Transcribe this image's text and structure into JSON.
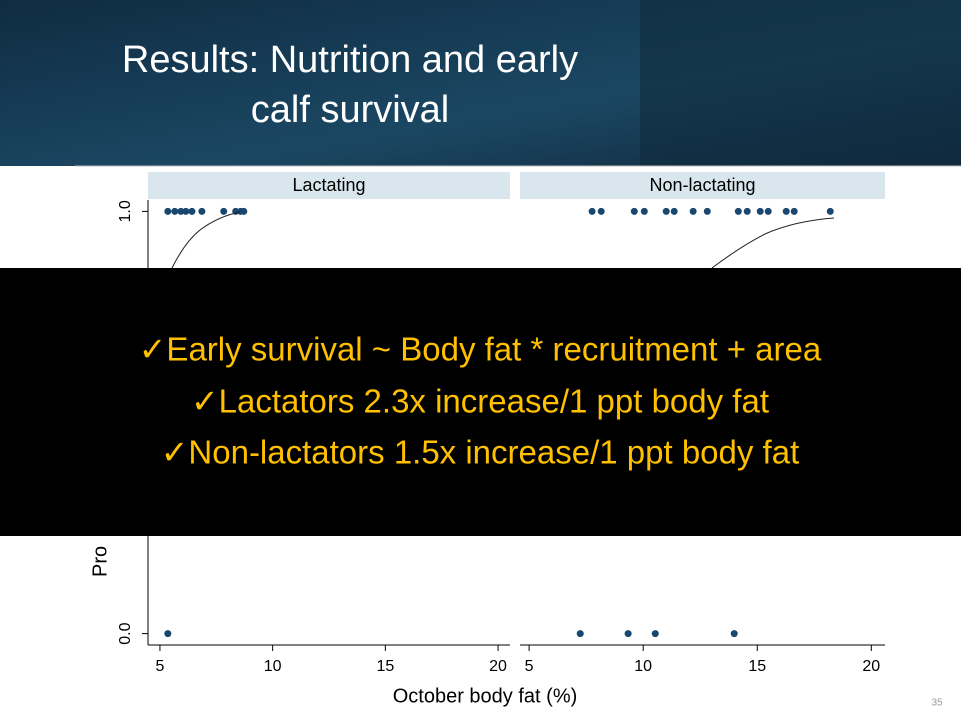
{
  "title_lines": [
    "Results: Nutrition and early",
    "calf survival"
  ],
  "chart_data": [
    {
      "type": "scatter",
      "title": "Lactating",
      "color": "#1a476f",
      "x": [
        5.35,
        5.66,
        5.93,
        6.15,
        6.42,
        6.86,
        7.83,
        8.36,
        8.58,
        8.72,
        5.35
      ],
      "y": [
        1,
        1,
        1,
        1,
        1,
        1,
        1,
        1,
        1,
        1,
        0
      ],
      "xlim": [
        4.47,
        20.53
      ],
      "ylim": [
        -0.027,
        1.027
      ],
      "xticks": [
        5,
        10,
        15,
        20
      ],
      "yticks": [
        {
          "value": 0,
          "label": "0.0"
        },
        {
          "value": 1,
          "label": "1.0"
        }
      ],
      "ylabel": "Pro"
    },
    {
      "type": "scatter",
      "title": "Non-lactating",
      "color": "#1a476f",
      "x": [
        7.76,
        8.16,
        9.61,
        10.05,
        11.01,
        11.36,
        12.19,
        12.81,
        14.17,
        14.56,
        15.13,
        15.48,
        16.27,
        16.62,
        18.2,
        7.24,
        9.34,
        10.53,
        13.99
      ],
      "y": [
        1,
        1,
        1,
        1,
        1,
        1,
        1,
        1,
        1,
        1,
        1,
        1,
        1,
        1,
        1,
        0,
        0,
        0,
        0
      ],
      "xlim": [
        4.6,
        20.6
      ],
      "ylim": [
        -0.027,
        1.027
      ],
      "xticks": [
        5,
        10,
        15,
        20
      ]
    }
  ],
  "x_label": "October body fat (%)",
  "overlay_lines": [
    "✓Early survival ~ Body fat * recruitment + area",
    "✓Lactators 2.3x increase/1 ppt body fat",
    "✓Non-lactators 1.5x increase/1 ppt body fat"
  ],
  "slide_number": "35"
}
